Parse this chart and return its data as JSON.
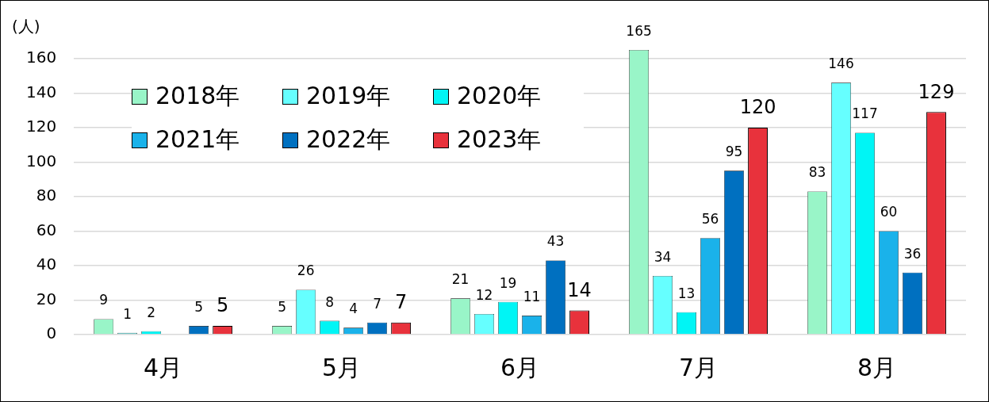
{
  "chart_data": {
    "type": "bar",
    "ylabel": "(人)",
    "categories": [
      "4月",
      "5月",
      "6月",
      "7月",
      "8月"
    ],
    "series": [
      {
        "name": "2018年",
        "color": "#99f5c8",
        "values": [
          9,
          5,
          21,
          165,
          83
        ]
      },
      {
        "name": "2019年",
        "color": "#66ffff",
        "values": [
          1,
          26,
          12,
          34,
          146
        ]
      },
      {
        "name": "2020年",
        "color": "#00f5f5",
        "values": [
          2,
          8,
          19,
          13,
          117
        ]
      },
      {
        "name": "2021年",
        "color": "#1ab2ea",
        "values": [
          null,
          4,
          11,
          56,
          60
        ]
      },
      {
        "name": "2022年",
        "color": "#0070c0",
        "values": [
          5,
          7,
          43,
          95,
          36
        ]
      },
      {
        "name": "2023年",
        "color": "#e8323c",
        "values": [
          5,
          7,
          14,
          120,
          129
        ]
      }
    ],
    "ylim": [
      0,
      165
    ],
    "yticks": [
      0,
      20,
      40,
      60,
      80,
      100,
      120,
      140,
      160
    ],
    "grid": "y",
    "legend": "top left",
    "data_labels": true
  }
}
